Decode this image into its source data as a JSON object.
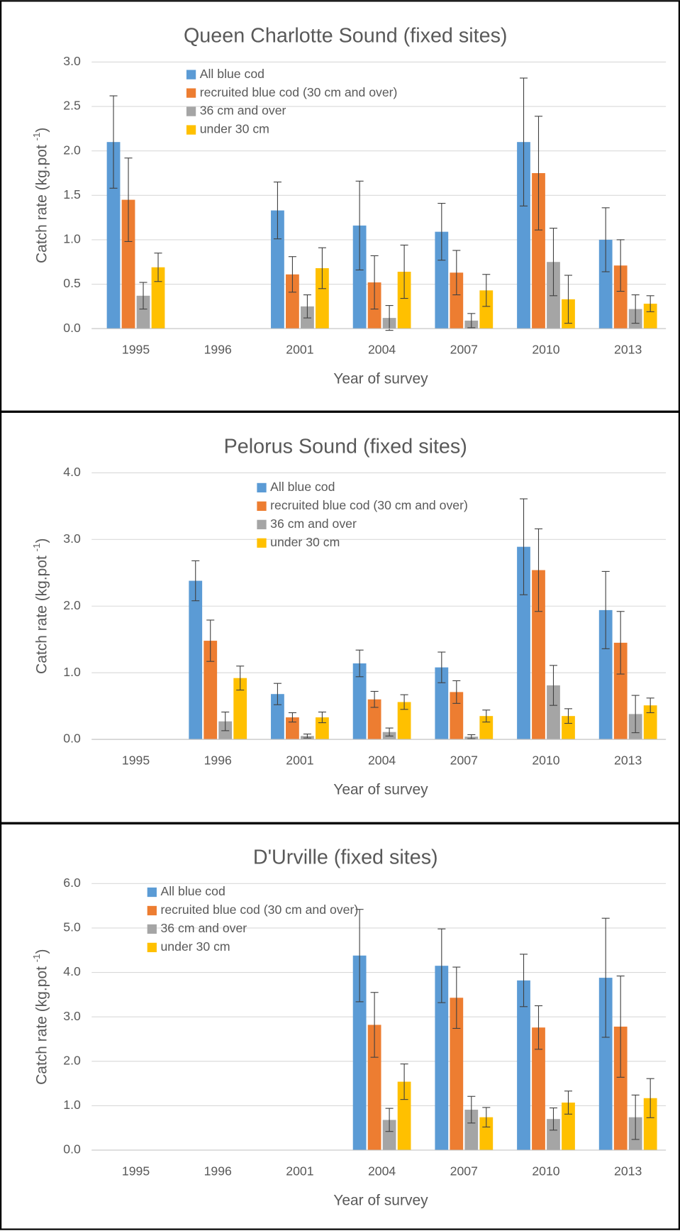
{
  "chart_data": [
    {
      "type": "bar",
      "title": "Queen Charlotte Sound (fixed sites)",
      "x_label": "Year of survey",
      "y_label": "Catch rate (kg.pot ",
      "y_label_superscript": "-1",
      "y_label_end": ")",
      "categories": [
        "1995",
        "1996",
        "2001",
        "2004",
        "2007",
        "2010",
        "2013"
      ],
      "series": [
        {
          "name": "All blue cod",
          "color": "#5b9bd5",
          "values": [
            2.1,
            null,
            1.33,
            1.16,
            1.09,
            2.1,
            1.0
          ],
          "errors": [
            0.52,
            null,
            0.32,
            0.5,
            0.32,
            0.72,
            0.36
          ]
        },
        {
          "name": "recruited blue cod (30 cm and over)",
          "color": "#ed7d31",
          "values": [
            1.45,
            null,
            0.61,
            0.52,
            0.63,
            1.75,
            0.71
          ],
          "errors": [
            0.47,
            null,
            0.2,
            0.3,
            0.25,
            0.64,
            0.29
          ]
        },
        {
          "name": "36 cm and over",
          "color": "#a5a5a5",
          "values": [
            0.37,
            null,
            0.25,
            0.12,
            0.09,
            0.75,
            0.22
          ],
          "errors": [
            0.15,
            null,
            0.13,
            0.14,
            0.08,
            0.38,
            0.16
          ]
        },
        {
          "name": "under 30 cm",
          "color": "#ffc000",
          "values": [
            0.69,
            null,
            0.68,
            0.64,
            0.43,
            0.33,
            0.28
          ],
          "errors": [
            0.16,
            null,
            0.23,
            0.3,
            0.18,
            0.27,
            0.09
          ]
        }
      ],
      "ylim": [
        0,
        3
      ],
      "yticks": [
        {
          "value": 0,
          "label": "0.0"
        },
        {
          "value": 0.5,
          "label": "0.5"
        },
        {
          "value": 1,
          "label": "1.0"
        },
        {
          "value": 1.5,
          "label": "1.5"
        },
        {
          "value": 2,
          "label": "2.0"
        },
        {
          "value": 2.5,
          "label": "2.5"
        },
        {
          "value": 3,
          "label": "3.0"
        }
      ],
      "grid": true
    },
    {
      "type": "bar",
      "title": "Pelorus Sound (fixed sites)",
      "x_label": "Year of survey",
      "y_label": "Catch rate (kg.pot ",
      "y_label_superscript": "-1",
      "y_label_end": ")",
      "categories": [
        "1995",
        "1996",
        "2001",
        "2004",
        "2007",
        "2010",
        "2013"
      ],
      "series": [
        {
          "name": "All blue cod",
          "color": "#5b9bd5",
          "values": [
            null,
            2.38,
            0.68,
            1.14,
            1.08,
            2.89,
            1.94
          ],
          "errors": [
            null,
            0.3,
            0.16,
            0.2,
            0.23,
            0.72,
            0.58
          ]
        },
        {
          "name": "recruited blue cod (30 cm and over)",
          "color": "#ed7d31",
          "values": [
            null,
            1.48,
            0.33,
            0.6,
            0.71,
            2.54,
            1.45
          ],
          "errors": [
            null,
            0.31,
            0.07,
            0.12,
            0.17,
            0.62,
            0.47
          ]
        },
        {
          "name": "36 cm and over",
          "color": "#a5a5a5",
          "values": [
            null,
            0.27,
            0.05,
            0.11,
            0.04,
            0.81,
            0.38
          ],
          "errors": [
            null,
            0.14,
            0.03,
            0.06,
            0.03,
            0.3,
            0.28
          ]
        },
        {
          "name": "under 30 cm",
          "color": "#ffc000",
          "values": [
            null,
            0.92,
            0.33,
            0.56,
            0.35,
            0.35,
            0.51
          ],
          "errors": [
            null,
            0.18,
            0.08,
            0.11,
            0.09,
            0.11,
            0.11
          ]
        }
      ],
      "ylim": [
        0,
        4
      ],
      "yticks": [
        {
          "value": 0,
          "label": "0.0"
        },
        {
          "value": 1,
          "label": "1.0"
        },
        {
          "value": 2,
          "label": "2.0"
        },
        {
          "value": 3,
          "label": "3.0"
        },
        {
          "value": 4,
          "label": "4.0"
        }
      ],
      "grid": true
    },
    {
      "type": "bar",
      "title": "D'Urville (fixed sites)",
      "x_label": "Year of survey",
      "y_label": "Catch rate (kg.pot ",
      "y_label_superscript": "-1",
      "y_label_end": ")",
      "categories": [
        "1995",
        "1996",
        "2001",
        "2004",
        "2007",
        "2010",
        "2013"
      ],
      "series": [
        {
          "name": "All blue cod",
          "color": "#5b9bd5",
          "values": [
            null,
            null,
            null,
            4.38,
            4.15,
            3.82,
            3.88
          ],
          "errors": [
            null,
            null,
            null,
            1.04,
            0.83,
            0.59,
            1.34
          ]
        },
        {
          "name": "recruited blue cod (30 cm and over)",
          "color": "#ed7d31",
          "values": [
            null,
            null,
            null,
            2.82,
            3.43,
            2.76,
            2.78
          ],
          "errors": [
            null,
            null,
            null,
            0.73,
            0.69,
            0.49,
            1.14
          ]
        },
        {
          "name": "36 cm and over",
          "color": "#a5a5a5",
          "values": [
            null,
            null,
            null,
            0.68,
            0.91,
            0.7,
            0.74
          ],
          "errors": [
            null,
            null,
            null,
            0.26,
            0.3,
            0.25,
            0.5
          ]
        },
        {
          "name": "under 30 cm",
          "color": "#ffc000",
          "values": [
            null,
            null,
            null,
            1.54,
            0.74,
            1.07,
            1.17
          ],
          "errors": [
            null,
            null,
            null,
            0.4,
            0.22,
            0.26,
            0.44
          ]
        }
      ],
      "ylim": [
        0,
        6
      ],
      "yticks": [
        {
          "value": 0,
          "label": "0.0"
        },
        {
          "value": 1,
          "label": "1.0"
        },
        {
          "value": 2,
          "label": "2.0"
        },
        {
          "value": 3,
          "label": "3.0"
        },
        {
          "value": 4,
          "label": "4.0"
        },
        {
          "value": 5,
          "label": "5.0"
        },
        {
          "value": 6,
          "label": "6.0"
        }
      ],
      "grid": true
    }
  ]
}
